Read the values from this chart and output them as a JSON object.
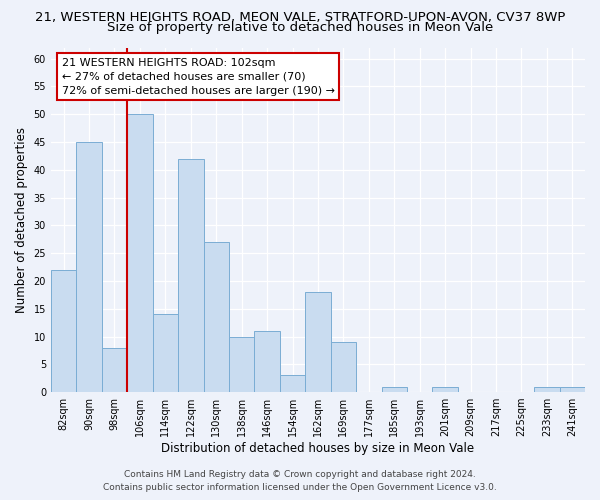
{
  "title_line1": "21, WESTERN HEIGHTS ROAD, MEON VALE, STRATFORD-UPON-AVON, CV37 8WP",
  "title_line2": "Size of property relative to detached houses in Meon Vale",
  "xlabel": "Distribution of detached houses by size in Meon Vale",
  "ylabel": "Number of detached properties",
  "bar_labels": [
    "82sqm",
    "90sqm",
    "98sqm",
    "106sqm",
    "114sqm",
    "122sqm",
    "130sqm",
    "138sqm",
    "146sqm",
    "154sqm",
    "162sqm",
    "169sqm",
    "177sqm",
    "185sqm",
    "193sqm",
    "201sqm",
    "209sqm",
    "217sqm",
    "225sqm",
    "233sqm",
    "241sqm"
  ],
  "bar_values": [
    22,
    45,
    8,
    50,
    14,
    42,
    27,
    10,
    11,
    3,
    18,
    9,
    0,
    1,
    0,
    1,
    0,
    0,
    0,
    1,
    1
  ],
  "bar_color": "#c9dcf0",
  "bar_edge_color": "#7aadd4",
  "vline_x_index": 3,
  "vline_color": "#cc0000",
  "annotation_text": "21 WESTERN HEIGHTS ROAD: 102sqm\n← 27% of detached houses are smaller (70)\n72% of semi-detached houses are larger (190) →",
  "annotation_box_facecolor": "#ffffff",
  "annotation_box_edgecolor": "#cc0000",
  "ylim": [
    0,
    62
  ],
  "yticks": [
    0,
    5,
    10,
    15,
    20,
    25,
    30,
    35,
    40,
    45,
    50,
    55,
    60
  ],
  "footer_line1": "Contains HM Land Registry data © Crown copyright and database right 2024.",
  "footer_line2": "Contains public sector information licensed under the Open Government Licence v3.0.",
  "bg_color": "#eef2fa",
  "plot_bg_color": "#eef2fa",
  "grid_color": "#ffffff",
  "title_fontsize": 9.5,
  "subtitle_fontsize": 9.5,
  "axis_label_fontsize": 8.5,
  "tick_fontsize": 7,
  "annotation_fontsize": 8,
  "footer_fontsize": 6.5
}
